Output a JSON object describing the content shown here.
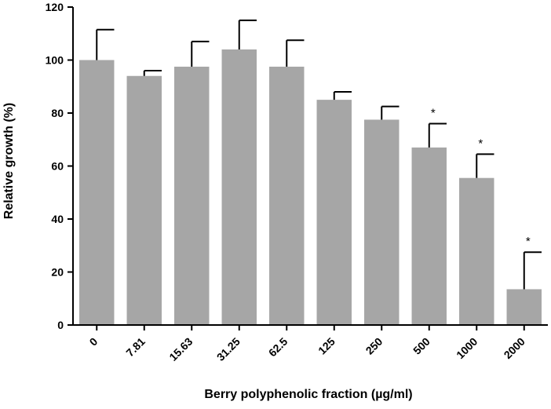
{
  "chart_data": {
    "type": "bar",
    "title": "",
    "xlabel": "Berry polyphenolic fraction (µg/ml)",
    "ylabel": "Relative growth (%)",
    "ylim": [
      0,
      120
    ],
    "yticks": [
      "0",
      "20",
      "40",
      "60",
      "80",
      "100",
      "120"
    ],
    "categories": [
      "0",
      "7.81",
      "15.63",
      "31.25",
      "62.5",
      "125",
      "250",
      "500",
      "1000",
      "2000"
    ],
    "values": [
      100,
      94,
      97.5,
      104,
      97.5,
      85,
      77.5,
      67,
      55.5,
      13.5
    ],
    "error_upper": [
      11.5,
      2,
      9.5,
      11,
      10,
      3,
      5,
      9,
      9,
      14
    ],
    "significance": [
      "",
      "",
      "",
      "",
      "",
      "",
      "",
      "*",
      "*",
      "*"
    ],
    "grid": false,
    "bar_color": "#a6a6a6",
    "axis_color": "#000000"
  }
}
